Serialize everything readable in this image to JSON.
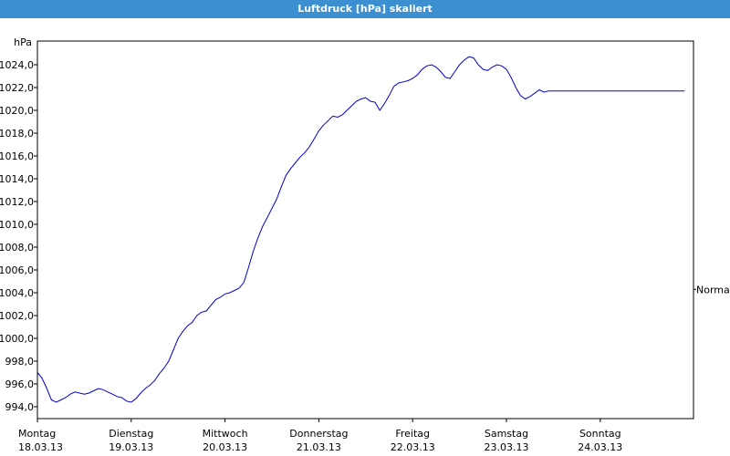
{
  "window": {
    "title": "Luftdruck [hPa] skaliert"
  },
  "chart_data": {
    "type": "line",
    "title": "Luftdruck [hPa] skaliert",
    "ylabel": "hPa",
    "xlabel": "",
    "ylim": [
      993,
      1026
    ],
    "y_ticks": [
      "994,0",
      "996,0",
      "998,0",
      "1000,0",
      "1002,0",
      "1004,0",
      "1006,0",
      "1008,0",
      "1010,0",
      "1012,0",
      "1014,0",
      "1016,0",
      "1018,0",
      "1020,0",
      "1022,0",
      "1024,0"
    ],
    "reference_line": {
      "label": "Normal",
      "value": 1004.3
    },
    "x_ticks": [
      {
        "day": "Montag",
        "date": "18.03.13"
      },
      {
        "day": "Dienstag",
        "date": "19.03.13"
      },
      {
        "day": "Mittwoch",
        "date": "20.03.13"
      },
      {
        "day": "Donnerstag",
        "date": "21.03.13"
      },
      {
        "day": "Freitag",
        "date": "22.03.13"
      },
      {
        "day": "Samstag",
        "date": "23.03.13"
      },
      {
        "day": "Sonntag",
        "date": "24.03.13"
      }
    ],
    "grid": true,
    "series": [
      {
        "color": "#0000cc",
        "x": [
          0,
          0.05,
          0.1,
          0.15,
          0.2,
          0.25,
          0.3,
          0.35,
          0.4,
          0.45,
          0.5,
          0.55,
          0.6,
          0.65,
          0.7,
          0.75,
          0.8,
          0.85,
          0.9,
          0.95,
          1.0,
          1.05,
          1.1,
          1.15,
          1.2,
          1.25,
          1.3,
          1.35,
          1.4,
          1.45,
          1.5,
          1.55,
          1.6,
          1.65,
          1.7,
          1.75,
          1.8,
          1.85,
          1.9,
          1.95,
          2.0,
          2.05,
          2.1,
          2.15,
          2.2,
          2.25,
          2.3,
          2.35,
          2.4,
          2.45,
          2.5,
          2.55,
          2.6,
          2.65,
          2.7,
          2.75,
          2.8,
          2.85,
          2.9,
          2.95,
          3.0,
          3.05,
          3.1,
          3.15,
          3.2,
          3.25,
          3.3,
          3.35,
          3.4,
          3.45,
          3.5,
          3.55,
          3.6,
          3.65,
          3.7,
          3.75,
          3.8,
          3.85,
          3.9,
          3.95,
          4.0,
          4.05,
          4.1,
          4.15,
          4.2,
          4.25,
          4.3,
          4.35,
          4.4,
          4.45,
          4.5,
          4.55,
          4.6,
          4.65,
          4.7,
          4.75,
          4.8,
          4.85,
          4.9,
          4.95,
          5.0,
          5.05,
          5.1,
          5.15,
          5.2,
          5.25,
          5.3,
          5.35,
          5.4,
          5.45,
          5.5,
          5.55,
          5.6,
          5.65,
          5.7,
          5.75,
          5.8,
          5.85,
          5.9,
          5.95,
          6.0,
          6.05,
          6.1,
          6.15,
          6.2,
          6.25,
          6.3,
          6.35,
          6.4,
          6.45,
          6.5,
          6.55,
          6.6,
          6.65,
          6.7,
          6.75,
          6.8,
          6.85,
          6.9,
          6.95,
          7.0,
          7.05,
          7.1
        ],
        "y": [
          997.0,
          996.5,
          995.6,
          994.6,
          994.4,
          994.6,
          994.8,
          995.1,
          995.3,
          995.2,
          995.1,
          995.2,
          995.4,
          995.6,
          995.5,
          995.3,
          995.1,
          994.9,
          994.8,
          994.5,
          994.4,
          994.7,
          995.2,
          995.6,
          995.9,
          996.3,
          996.9,
          997.4,
          998.0,
          999.0,
          1000.0,
          1000.6,
          1001.1,
          1001.4,
          1002.0,
          1002.3,
          1002.4,
          1002.9,
          1003.4,
          1003.6,
          1003.9,
          1004.0,
          1004.2,
          1004.4,
          1004.9,
          1006.2,
          1007.6,
          1008.8,
          1009.8,
          1010.6,
          1011.4,
          1012.2,
          1013.3,
          1014.3,
          1014.9,
          1015.4,
          1015.9,
          1016.3,
          1016.8,
          1017.5,
          1018.2,
          1018.7,
          1019.1,
          1019.5,
          1019.4,
          1019.6,
          1020.0,
          1020.4,
          1020.8,
          1021.0,
          1021.1,
          1020.8,
          1020.7,
          1020.0,
          1020.6,
          1021.3,
          1022.1,
          1022.4,
          1022.5,
          1022.6,
          1022.8,
          1023.1,
          1023.6,
          1023.9,
          1024.0,
          1023.8,
          1023.4,
          1022.9,
          1022.8,
          1023.4,
          1024.0,
          1024.4,
          1024.7,
          1024.6,
          1024.0,
          1023.6,
          1023.5,
          1023.8,
          1024.0,
          1023.9,
          1023.6,
          1022.9,
          1022.0,
          1021.3,
          1021.0,
          1021.2,
          1021.5,
          1021.8,
          1021.6,
          1021.7,
          1021.7,
          1021.7,
          1021.7,
          1021.7,
          1021.7,
          1021.7,
          1021.7,
          1021.7,
          1021.7,
          1021.7,
          1021.7,
          1021.7,
          1021.7,
          1021.7,
          1021.7,
          1021.7,
          1021.7,
          1021.7,
          1021.7,
          1021.7,
          1021.7,
          1021.7,
          1021.7,
          1021.7,
          1021.7,
          1021.7,
          1021.7,
          1021.7,
          1021.7,
          1021.7,
          1021.7,
          1021.7,
          1021.7
        ]
      }
    ]
  }
}
